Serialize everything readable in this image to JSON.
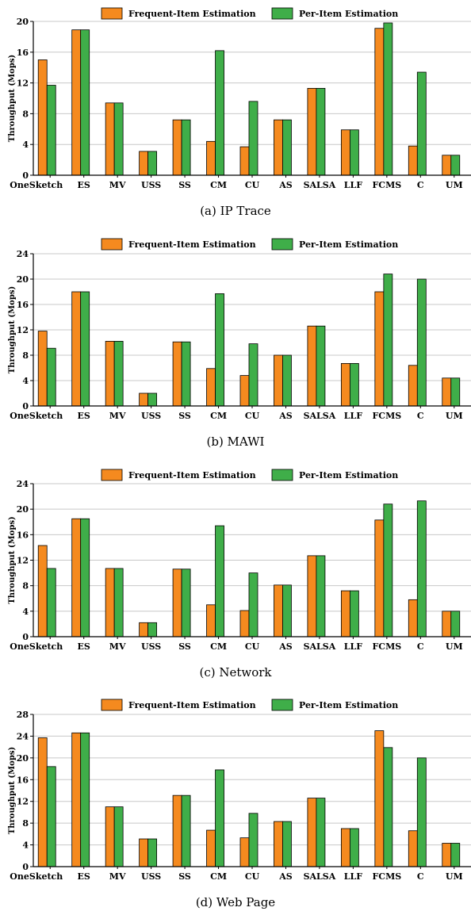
{
  "colors": {
    "frequent": "#F58A1F",
    "per_item": "#3FAE49",
    "axis": "#000000",
    "grid": "#c8c8c8"
  },
  "chart_data": [
    {
      "type": "bar",
      "caption": "(a) IP Trace",
      "ylabel": "Throughput (Mops)",
      "ylim": [
        0,
        20
      ],
      "yticks": [
        0,
        4,
        8,
        12,
        16,
        20
      ],
      "grid": true,
      "legend_position": "top",
      "categories": [
        "OneSketch",
        "ES",
        "MV",
        "USS",
        "SS",
        "CM",
        "CU",
        "AS",
        "SALSA",
        "LLF",
        "FCMS",
        "C",
        "UM"
      ],
      "series": [
        {
          "name": "Frequent-Item Estimation",
          "values": [
            15.0,
            18.9,
            9.4,
            3.1,
            7.2,
            4.4,
            3.7,
            7.2,
            11.3,
            5.9,
            19.1,
            3.8,
            2.6
          ]
        },
        {
          "name": "Per-Item Estimation",
          "values": [
            11.7,
            18.9,
            9.4,
            3.1,
            7.2,
            16.2,
            9.6,
            7.2,
            11.3,
            5.9,
            19.8,
            13.4,
            2.6
          ]
        }
      ]
    },
    {
      "type": "bar",
      "caption": "(b) MAWI",
      "ylabel": "Throughput (Mops)",
      "ylim": [
        0,
        24
      ],
      "yticks": [
        0,
        4,
        8,
        12,
        16,
        20,
        24
      ],
      "grid": true,
      "legend_position": "top",
      "categories": [
        "OneSketch",
        "ES",
        "MV",
        "USS",
        "SS",
        "CM",
        "CU",
        "AS",
        "SALSA",
        "LLF",
        "FCMS",
        "C",
        "UM"
      ],
      "series": [
        {
          "name": "Frequent-Item Estimation",
          "values": [
            11.8,
            18.0,
            10.2,
            2.0,
            10.1,
            5.9,
            4.8,
            8.0,
            12.6,
            6.7,
            18.0,
            6.4,
            4.4
          ]
        },
        {
          "name": "Per-Item Estimation",
          "values": [
            9.1,
            18.0,
            10.2,
            2.0,
            10.1,
            17.7,
            9.8,
            8.0,
            12.6,
            6.7,
            20.8,
            20.0,
            4.4
          ]
        }
      ]
    },
    {
      "type": "bar",
      "caption": "(c) Network",
      "ylabel": "Throughput (Mops)",
      "ylim": [
        0,
        24
      ],
      "yticks": [
        0,
        4,
        8,
        12,
        16,
        20,
        24
      ],
      "grid": true,
      "legend_position": "top",
      "categories": [
        "OneSketch",
        "ES",
        "MV",
        "USS",
        "SS",
        "CM",
        "CU",
        "AS",
        "SALSA",
        "LLF",
        "FCMS",
        "C",
        "UM"
      ],
      "series": [
        {
          "name": "Frequent-Item Estimation",
          "values": [
            14.3,
            18.5,
            10.7,
            2.2,
            10.6,
            5.0,
            4.1,
            8.1,
            12.7,
            7.2,
            18.3,
            5.8,
            4.0
          ]
        },
        {
          "name": "Per-Item Estimation",
          "values": [
            10.7,
            18.5,
            10.7,
            2.2,
            10.6,
            17.4,
            10.0,
            8.1,
            12.7,
            7.2,
            20.8,
            21.3,
            4.0
          ]
        }
      ]
    },
    {
      "type": "bar",
      "caption": "(d) Web Page",
      "ylabel": "Throughput (Mops)",
      "ylim": [
        0,
        28
      ],
      "yticks": [
        0,
        4,
        8,
        12,
        16,
        20,
        24,
        28
      ],
      "grid": true,
      "legend_position": "top",
      "categories": [
        "OneSketch",
        "ES",
        "MV",
        "USS",
        "SS",
        "CM",
        "CU",
        "AS",
        "SALSA",
        "LLF",
        "FCMS",
        "C",
        "UM"
      ],
      "series": [
        {
          "name": "Frequent-Item Estimation",
          "values": [
            23.7,
            24.6,
            11.0,
            5.1,
            13.1,
            6.7,
            5.3,
            8.3,
            12.6,
            7.0,
            25.0,
            6.6,
            4.3
          ]
        },
        {
          "name": "Per-Item Estimation",
          "values": [
            18.4,
            24.6,
            11.0,
            5.1,
            13.1,
            17.8,
            9.8,
            8.3,
            12.6,
            7.0,
            21.9,
            20.0,
            4.3
          ]
        }
      ]
    }
  ]
}
